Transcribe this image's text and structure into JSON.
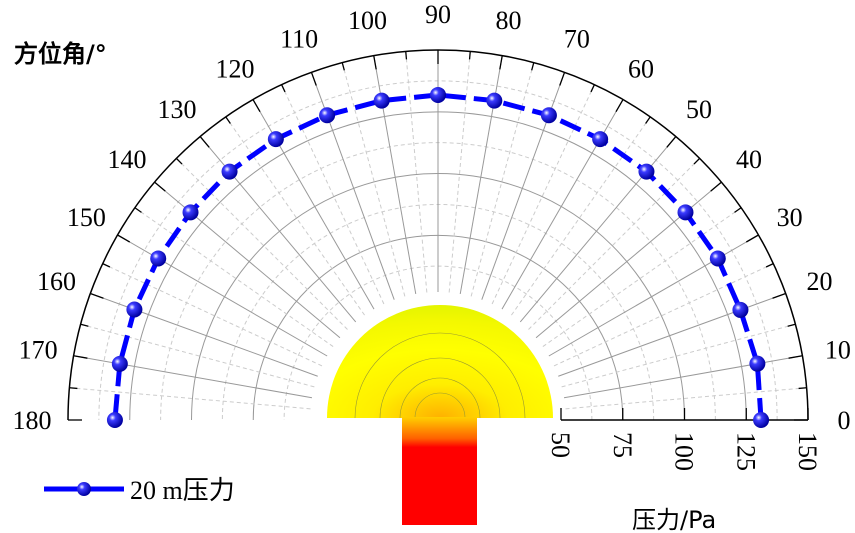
{
  "chart_data": {
    "type": "polar-line",
    "title": "",
    "angular_axis_label": "方位角/°",
    "radial_axis_label": "压力/Pa",
    "angular_range": [
      0,
      180
    ],
    "angular_ticks": [
      "0",
      "10",
      "20",
      "30",
      "40",
      "50",
      "60",
      "70",
      "80",
      "90",
      "100",
      "110",
      "120",
      "130",
      "140",
      "150",
      "160",
      "170",
      "180"
    ],
    "radial_range": [
      50,
      150
    ],
    "radial_ticks": [
      "50",
      "75",
      "100",
      "125",
      "150"
    ],
    "grid": true,
    "legend_position": "bottom-left",
    "series": [
      {
        "name": "20 m压力",
        "color": "#0000ff",
        "angles": [
          0,
          10,
          20,
          30,
          40,
          50,
          60,
          70,
          80,
          90,
          100,
          110,
          120,
          130,
          140,
          150,
          160,
          170,
          180
        ],
        "values": [
          131,
          131.5,
          130.5,
          131,
          131,
          131.5,
          131.5,
          131.5,
          131.5,
          131.8,
          131.5,
          131.5,
          131.5,
          131.5,
          131,
          131,
          131,
          131,
          131
        ]
      }
    ]
  },
  "inset": {
    "semicircle_color": "#e8f500",
    "stem_color": "#ff0000"
  }
}
